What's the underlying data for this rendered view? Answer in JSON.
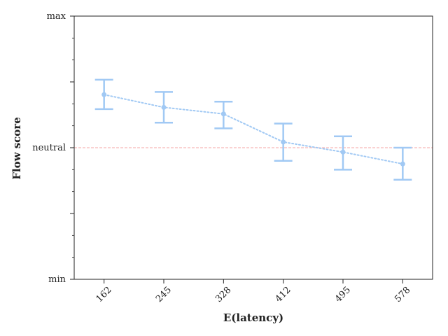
{
  "chart_data": {
    "type": "line",
    "xlabel": "E(latency)",
    "ylabel": "Flow score",
    "categories": [
      "162",
      "245",
      "328",
      "412",
      "495",
      "578"
    ],
    "y_tick_labels": [
      {
        "value": 0,
        "label": "min"
      },
      {
        "value": 1.5,
        "label": ""
      },
      {
        "value": 3,
        "label": "neutral"
      },
      {
        "value": 4.5,
        "label": ""
      },
      {
        "value": 6,
        "label": "max"
      }
    ],
    "y_minor_ticks": [
      0.5,
      1,
      2,
      2.5,
      3.5,
      4,
      5,
      5.5
    ],
    "ylim": [
      0,
      6
    ],
    "reference_line": {
      "y": 3,
      "color": "#f4a6a6",
      "style": "dashed"
    },
    "series": [
      {
        "values": [
          4.21,
          3.92,
          3.77,
          3.13,
          2.9,
          2.63
        ],
        "err_low": [
          3.88,
          3.57,
          3.44,
          2.7,
          2.5,
          2.27
        ],
        "err_high": [
          4.55,
          4.27,
          4.05,
          3.55,
          3.26,
          3.0
        ],
        "color": "#a1c9f4",
        "line_style": "dotted"
      }
    ],
    "grid": false,
    "legend": "none"
  }
}
